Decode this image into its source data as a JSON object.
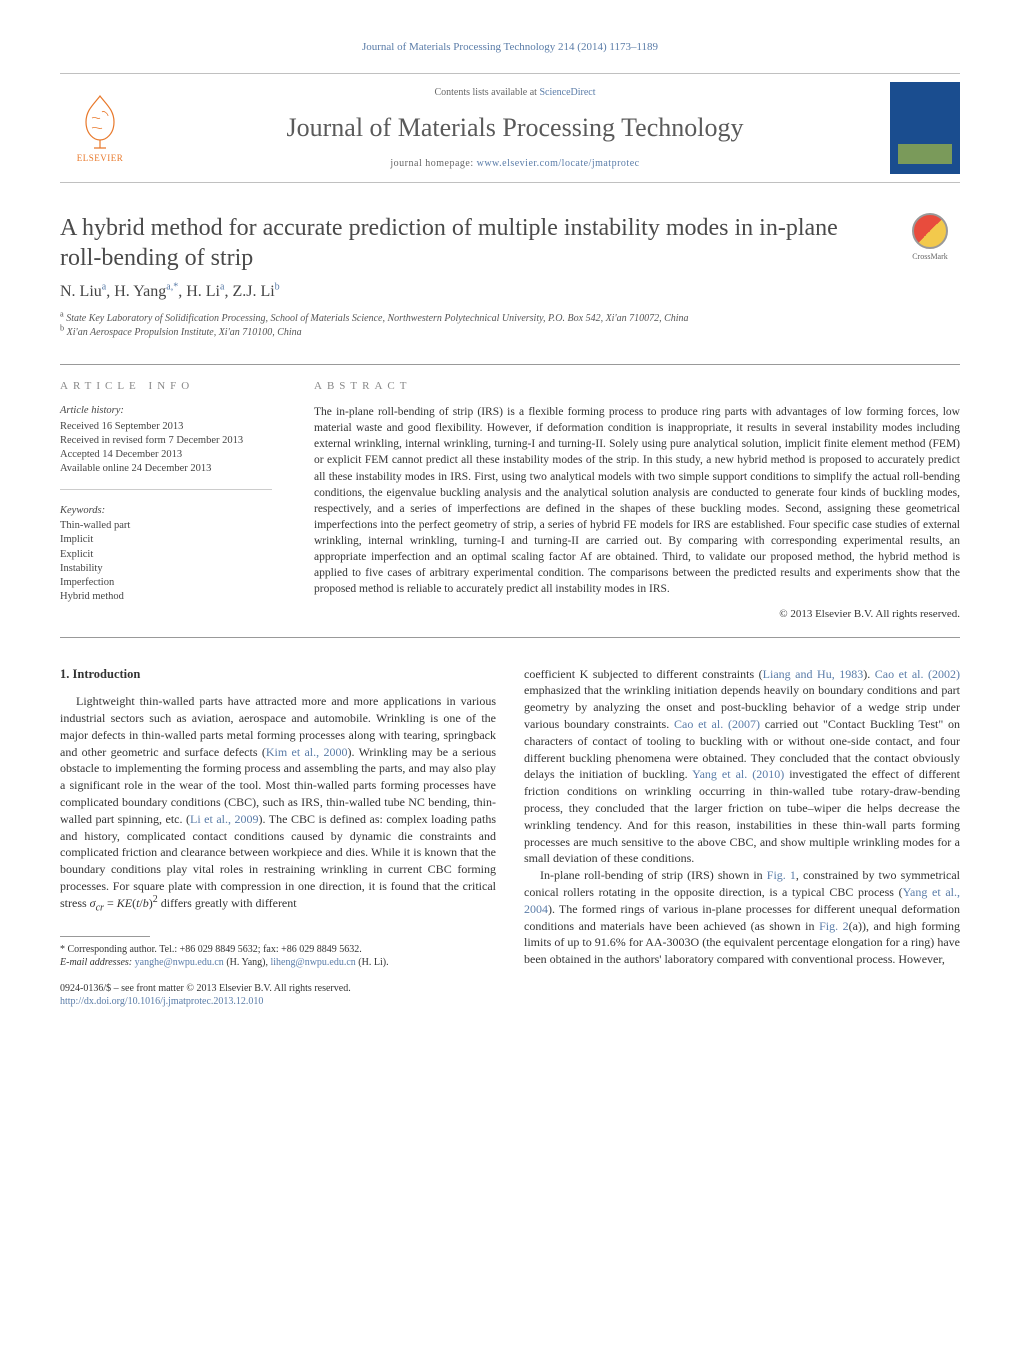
{
  "header": {
    "citation": "Journal of Materials Processing Technology 214 (2014) 1173–1189",
    "contents_prefix": "Contents lists available at ",
    "contents_link": "ScienceDirect",
    "journal_title": "Journal of Materials Processing Technology",
    "homepage_prefix": "journal homepage: ",
    "homepage_url": "www.elsevier.com/locate/jmatprotec",
    "publisher": "ELSEVIER",
    "crossmark_label": "CrossMark"
  },
  "article": {
    "title": "A hybrid method for accurate prediction of multiple instability modes in in-plane roll-bending of strip",
    "authors_html": "N. Liu<sup>a</sup>, H. Yang<sup>a,*</sup>, H. Li<sup>a</sup>, Z.J. Li<sup>b</sup>",
    "affiliations": [
      "a State Key Laboratory of Solidification Processing, School of Materials Science, Northwestern Polytechnical University, P.O. Box 542, Xi'an 710072, China",
      "b Xi'an Aerospace Propulsion Institute, Xi'an 710100, China"
    ]
  },
  "info": {
    "heading": "ARTICLE INFO",
    "history_label": "Article history:",
    "history": [
      "Received 16 September 2013",
      "Received in revised form 7 December 2013",
      "Accepted 14 December 2013",
      "Available online 24 December 2013"
    ],
    "keywords_label": "Keywords:",
    "keywords": [
      "Thin-walled part",
      "Implicit",
      "Explicit",
      "Instability",
      "Imperfection",
      "Hybrid method"
    ]
  },
  "abstract": {
    "heading": "ABSTRACT",
    "text": "The in-plane roll-bending of strip (IRS) is a flexible forming process to produce ring parts with advantages of low forming forces, low material waste and good flexibility. However, if deformation condition is inappropriate, it results in several instability modes including external wrinkling, internal wrinkling, turning-I and turning-II. Solely using pure analytical solution, implicit finite element method (FEM) or explicit FEM cannot predict all these instability modes of the strip. In this study, a new hybrid method is proposed to accurately predict all these instability modes in IRS. First, using two analytical models with two simple support conditions to simplify the actual roll-bending conditions, the eigenvalue buckling analysis and the analytical solution analysis are conducted to generate four kinds of buckling modes, respectively, and a series of imperfections are defined in the shapes of these buckling modes. Second, assigning these geometrical imperfections into the perfect geometry of strip, a series of hybrid FE models for IRS are established. Four specific case studies of external wrinkling, internal wrinkling, turning-I and turning-II are carried out. By comparing with corresponding experimental results, an appropriate imperfection and an optimal scaling factor Af are obtained. Third, to validate our proposed method, the hybrid method is applied to five cases of arbitrary experimental condition. The comparisons between the predicted results and experiments show that the proposed method is reliable to accurately predict all instability modes in IRS.",
    "copyright": "© 2013 Elsevier B.V. All rights reserved."
  },
  "body": {
    "section_heading": "1. Introduction",
    "col1": "Lightweight thin-walled parts have attracted more and more applications in various industrial sectors such as aviation, aerospace and automobile. Wrinkling is one of the major defects in thin-walled parts metal forming processes along with tearing, springback and other geometric and surface defects (Kim et al., 2000). Wrinkling may be a serious obstacle to implementing the forming process and assembling the parts, and may also play a significant role in the wear of the tool. Most thin-walled parts forming processes have complicated boundary conditions (CBC), such as IRS, thin-walled tube NC bending, thin-walled part spinning, etc. (Li et al., 2009). The CBC is defined as: complex loading paths and history, complicated contact conditions caused by dynamic die constraints and complicated friction and clearance between workpiece and dies. While it is known that the boundary conditions play vital roles in restraining wrinkling in current CBC forming processes. For square plate with compression in one direction, it is found that the critical stress σcr = KE(t/b)² differs greatly with different",
    "col2": "coefficient K subjected to different constraints (Liang and Hu, 1983). Cao et al. (2002) emphasized that the wrinkling initiation depends heavily on boundary conditions and part geometry by analyzing the onset and post-buckling behavior of a wedge strip under various boundary constraints. Cao et al. (2007) carried out \"Contact Buckling Test\" on characters of contact of tooling to buckling with or without one-side contact, and four different buckling phenomena were obtained. They concluded that the contact obviously delays the initiation of buckling. Yang et al. (2010) investigated the effect of different friction conditions on wrinkling occurring in thin-walled tube rotary-draw-bending process, they concluded that the larger friction on tube–wiper die helps decrease the wrinkling tendency. And for this reason, instabilities in these thin-wall parts forming processes are much sensitive to the above CBC, and show multiple wrinkling modes for a small deviation of these conditions.",
    "col2b": "In-plane roll-bending of strip (IRS) shown in Fig. 1, constrained by two symmetrical conical rollers rotating in the opposite direction, is a typical CBC process (Yang et al., 2004). The formed rings of various in-plane processes for different unequal deformation conditions and materials have been achieved (as shown in Fig. 2(a)), and high forming limits of up to 91.6% for AA-3003O (the equivalent percentage elongation for a ring) have been obtained in the authors' laboratory compared with conventional process. However,"
  },
  "footnote": {
    "corr": "* Corresponding author. Tel.: +86 029 8849 5632; fax: +86 029 8849 5632.",
    "email_label": "E-mail addresses:",
    "email1": "yanghe@nwpu.edu.cn",
    "email1_who": " (H. Yang), ",
    "email2": "liheng@nwpu.edu.cn",
    "email2_who": " (H. Li)."
  },
  "doi": {
    "line1": "0924-0136/$ – see front matter © 2013 Elsevier B.V. All rights reserved.",
    "url": "http://dx.doi.org/10.1016/j.jmatprotec.2013.12.010"
  },
  "colors": {
    "link": "#5a7ca8",
    "text": "#333333",
    "rule": "#999999"
  }
}
